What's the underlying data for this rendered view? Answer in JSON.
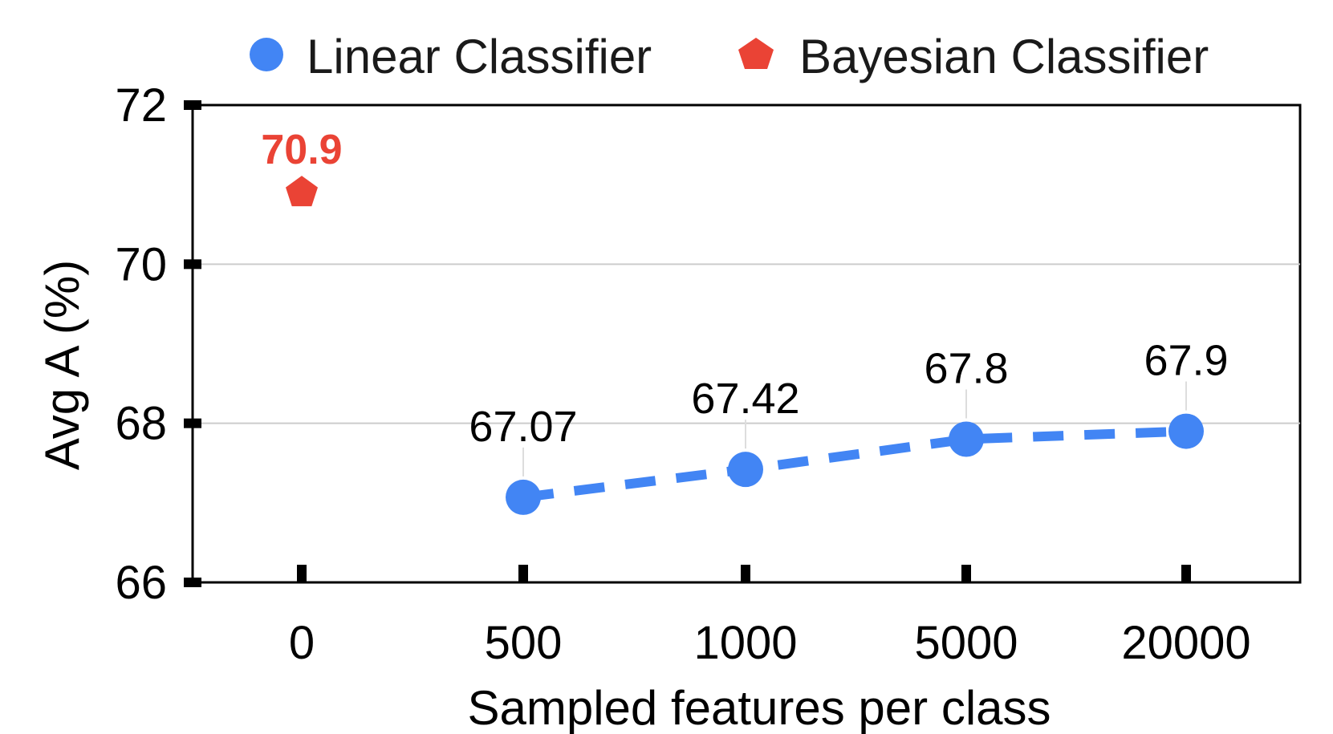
{
  "chart_data": {
    "type": "line",
    "xlabel": "Sampled features per class",
    "ylabel": "Avg A (%)",
    "categories": [
      "0",
      "500",
      "1000",
      "5000",
      "20000"
    ],
    "ylim": [
      66,
      72
    ],
    "yticks": [
      66,
      68,
      70,
      72
    ],
    "grid": "horizontal",
    "legend_position": "top",
    "series": [
      {
        "name": "Linear Classifier",
        "color": "#4285F4",
        "marker": "circle",
        "line_style": "dashed",
        "x": [
          "500",
          "1000",
          "5000",
          "20000"
        ],
        "values": [
          67.07,
          67.42,
          67.8,
          67.9
        ],
        "labels": [
          "67.07",
          "67.42",
          "67.8",
          "67.9"
        ]
      },
      {
        "name": "Bayesian Classifier",
        "color": "#EA4335",
        "marker": "pentagon",
        "x": [
          "0"
        ],
        "values": [
          70.9
        ],
        "labels": [
          "70.9"
        ]
      }
    ]
  }
}
